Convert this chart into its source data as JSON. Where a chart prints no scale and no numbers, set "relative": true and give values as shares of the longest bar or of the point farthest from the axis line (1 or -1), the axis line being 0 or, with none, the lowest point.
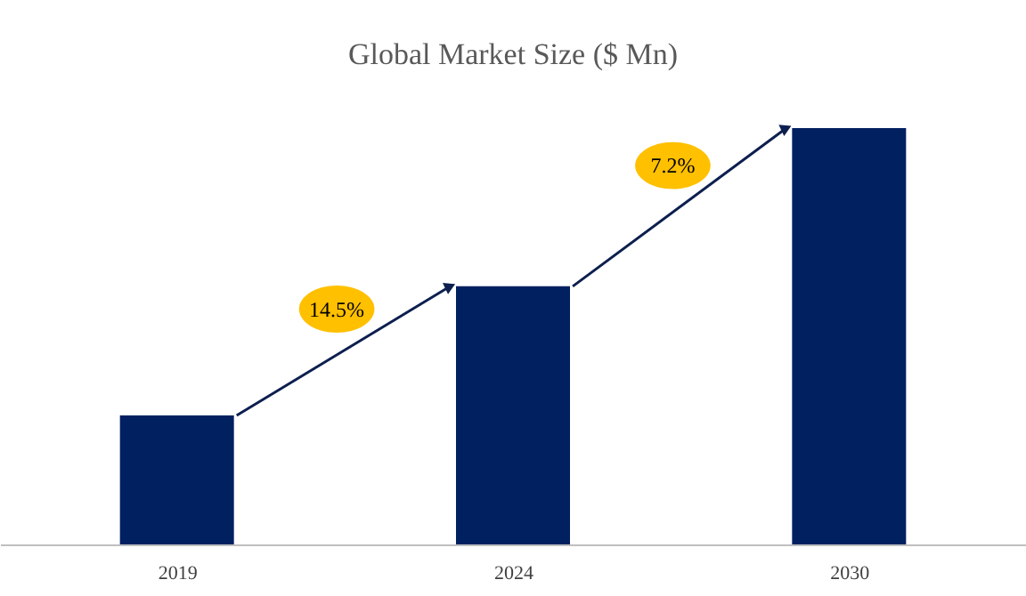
{
  "chart_data": {
    "type": "bar",
    "title": "Global Market Size ($ Mn)",
    "categories": [
      "2019",
      "2024",
      "2030"
    ],
    "values": [
      0.31,
      0.62,
      1
    ],
    "color": "#002060",
    "relative": true,
    "grid": false,
    "annotations": [
      "14.5%",
      "7.2%"
    ]
  }
}
